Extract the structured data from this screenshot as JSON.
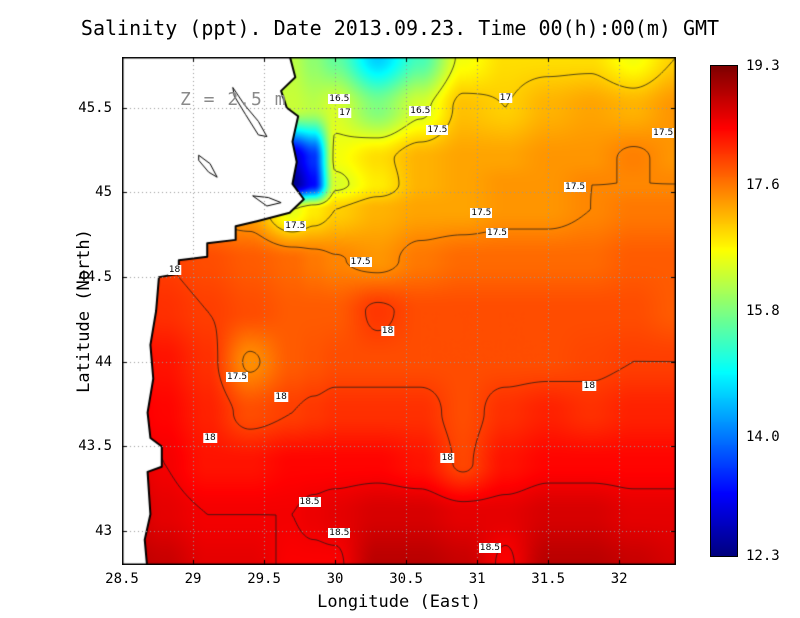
{
  "chart_data": {
    "type": "heatmap",
    "title": "Salinity (ppt). Date 2013.09.23. Time 00(h):00(m) GMT",
    "annotation": "Z = 2.5 m",
    "xlabel": "Longitude (East)",
    "ylabel": "Latitude (North)",
    "units": "ppt",
    "xlim": [
      28.5,
      32.4
    ],
    "ylim": [
      42.8,
      45.8
    ],
    "x_tick_labels": [
      "28.5",
      "29",
      "29.5",
      "30",
      "30.5",
      "31",
      "31.5",
      "32"
    ],
    "y_tick_labels": [
      "43",
      "43.5",
      "44",
      "44.5",
      "45",
      "45.5"
    ],
    "grid": true,
    "colorbar": {
      "min": 12.3,
      "max": 19.3,
      "tick_labels": [
        "19.3",
        "17.6",
        "15.8",
        "14.0",
        "12.3"
      ],
      "colormap": "jet",
      "position": "right"
    },
    "lon": [
      28.5,
      28.8,
      29.1,
      29.4,
      29.7,
      29.85,
      30.0,
      30.3,
      30.6,
      30.9,
      31.2,
      31.5,
      31.8,
      32.1,
      32.4
    ],
    "lat": [
      45.8,
      45.5,
      45.2,
      45.05,
      44.9,
      44.6,
      44.3,
      44.0,
      43.7,
      43.4,
      43.1,
      42.8
    ],
    "salinity": [
      [
        16.5,
        16.5,
        16.5,
        16.4,
        16.2,
        15.9,
        15.6,
        14.6,
        15.4,
        16.6,
        16.9,
        16.9,
        16.9,
        16.6,
        17.0
      ],
      [
        16.5,
        16.5,
        16.5,
        16.4,
        16.3,
        16.2,
        16.4,
        15.8,
        16.4,
        17.1,
        17.0,
        17.2,
        17.3,
        17.2,
        17.4
      ],
      [
        16.0,
        16.0,
        15.0,
        14.0,
        12.8,
        13.5,
        16.6,
        16.9,
        17.2,
        17.3,
        17.3,
        17.4,
        17.4,
        17.55,
        17.4
      ],
      [
        16.0,
        16.0,
        15.5,
        14.5,
        12.4,
        13.2,
        16.4,
        16.8,
        17.2,
        17.3,
        17.4,
        17.4,
        17.5,
        17.5,
        17.5
      ],
      [
        17.5,
        17.5,
        17.4,
        17.3,
        16.5,
        16.8,
        17.0,
        17.2,
        17.3,
        17.3,
        17.4,
        17.4,
        17.5,
        17.6,
        17.6
      ],
      [
        18.0,
        18.0,
        17.9,
        17.8,
        17.7,
        17.6,
        17.52,
        17.4,
        17.6,
        17.7,
        17.7,
        17.7,
        17.7,
        17.8,
        17.8
      ],
      [
        18.2,
        18.1,
        18.0,
        17.9,
        17.8,
        17.8,
        17.8,
        18.05,
        17.9,
        17.9,
        17.9,
        17.9,
        17.9,
        17.9,
        17.8
      ],
      [
        18.4,
        18.3,
        18.1,
        17.45,
        17.8,
        17.85,
        17.9,
        17.9,
        17.9,
        17.9,
        17.9,
        17.9,
        17.95,
        18.0,
        18.0
      ],
      [
        18.5,
        18.4,
        18.2,
        17.9,
        18.0,
        18.05,
        18.1,
        18.1,
        18.1,
        17.9,
        18.1,
        18.2,
        18.1,
        18.2,
        18.2
      ],
      [
        18.7,
        18.5,
        18.3,
        18.3,
        18.4,
        18.4,
        18.4,
        18.4,
        18.3,
        17.95,
        18.3,
        18.4,
        18.4,
        18.4,
        18.4
      ],
      [
        18.8,
        18.6,
        18.5,
        18.5,
        18.5,
        18.55,
        18.6,
        18.7,
        18.7,
        18.6,
        18.6,
        18.7,
        18.7,
        18.6,
        18.6
      ],
      [
        18.9,
        18.8,
        18.6,
        18.6,
        18.45,
        18.45,
        18.45,
        18.9,
        18.9,
        18.8,
        18.45,
        18.9,
        18.9,
        18.8,
        18.7
      ]
    ],
    "contour_levels": [
      16.5,
      17,
      17.5,
      18,
      18.5
    ],
    "contour_labels": [
      {
        "text": "16.5",
        "lon": 30.03,
        "lat": 45.55
      },
      {
        "text": "17",
        "lon": 30.07,
        "lat": 45.47
      },
      {
        "text": "16.5",
        "lon": 30.6,
        "lat": 45.48
      },
      {
        "text": "17",
        "lon": 31.2,
        "lat": 45.56
      },
      {
        "text": "17.5",
        "lon": 30.72,
        "lat": 45.37
      },
      {
        "text": "17.5",
        "lon": 32.31,
        "lat": 45.35
      },
      {
        "text": "17.5",
        "lon": 31.69,
        "lat": 45.03
      },
      {
        "text": "17.5",
        "lon": 29.72,
        "lat": 44.8
      },
      {
        "text": "17.5",
        "lon": 31.03,
        "lat": 44.88
      },
      {
        "text": "17.5",
        "lon": 31.14,
        "lat": 44.76
      },
      {
        "text": "18",
        "lon": 28.87,
        "lat": 44.54
      },
      {
        "text": "17.5",
        "lon": 30.18,
        "lat": 44.59
      },
      {
        "text": "18",
        "lon": 30.37,
        "lat": 44.18
      },
      {
        "text": "17.5",
        "lon": 29.31,
        "lat": 43.91
      },
      {
        "text": "18",
        "lon": 29.62,
        "lat": 43.79
      },
      {
        "text": "18",
        "lon": 31.79,
        "lat": 43.86
      },
      {
        "text": "18",
        "lon": 29.12,
        "lat": 43.55
      },
      {
        "text": "18",
        "lon": 30.79,
        "lat": 43.43
      },
      {
        "text": "18.5",
        "lon": 29.82,
        "lat": 43.17
      },
      {
        "text": "18.5",
        "lon": 30.03,
        "lat": 42.99
      },
      {
        "text": "18.5",
        "lon": 31.09,
        "lat": 42.9
      }
    ],
    "land_polygon": [
      [
        29.67,
        45.84
      ],
      [
        29.72,
        45.68
      ],
      [
        29.62,
        45.6
      ],
      [
        29.66,
        45.5
      ],
      [
        29.74,
        45.45
      ],
      [
        29.7,
        45.3
      ],
      [
        29.73,
        45.18
      ],
      [
        29.7,
        45.05
      ],
      [
        29.78,
        44.96
      ],
      [
        29.68,
        44.88
      ],
      [
        29.45,
        44.83
      ],
      [
        29.3,
        44.8
      ],
      [
        29.3,
        44.72
      ],
      [
        29.1,
        44.7
      ],
      [
        29.1,
        44.62
      ],
      [
        28.9,
        44.6
      ],
      [
        28.9,
        44.52
      ],
      [
        28.76,
        44.5
      ],
      [
        28.74,
        44.3
      ],
      [
        28.7,
        44.1
      ],
      [
        28.72,
        43.9
      ],
      [
        28.68,
        43.7
      ],
      [
        28.7,
        43.55
      ],
      [
        28.78,
        43.5
      ],
      [
        28.78,
        43.38
      ],
      [
        28.68,
        43.35
      ],
      [
        28.7,
        43.1
      ],
      [
        28.66,
        42.95
      ],
      [
        28.68,
        42.76
      ],
      [
        28.45,
        42.76
      ],
      [
        28.45,
        45.84
      ]
    ],
    "lagoons": [
      [
        [
          29.28,
          45.62
        ],
        [
          29.36,
          45.52
        ],
        [
          29.46,
          45.42
        ],
        [
          29.52,
          45.33
        ],
        [
          29.46,
          45.34
        ],
        [
          29.37,
          45.46
        ],
        [
          29.29,
          45.57
        ],
        [
          29.28,
          45.62
        ]
      ],
      [
        [
          29.04,
          45.22
        ],
        [
          29.12,
          45.17
        ],
        [
          29.17,
          45.09
        ],
        [
          29.11,
          45.12
        ],
        [
          29.04,
          45.19
        ],
        [
          29.04,
          45.22
        ]
      ],
      [
        [
          29.42,
          44.98
        ],
        [
          29.52,
          44.92
        ],
        [
          29.62,
          44.94
        ],
        [
          29.53,
          44.97
        ],
        [
          29.42,
          44.98
        ]
      ]
    ]
  }
}
